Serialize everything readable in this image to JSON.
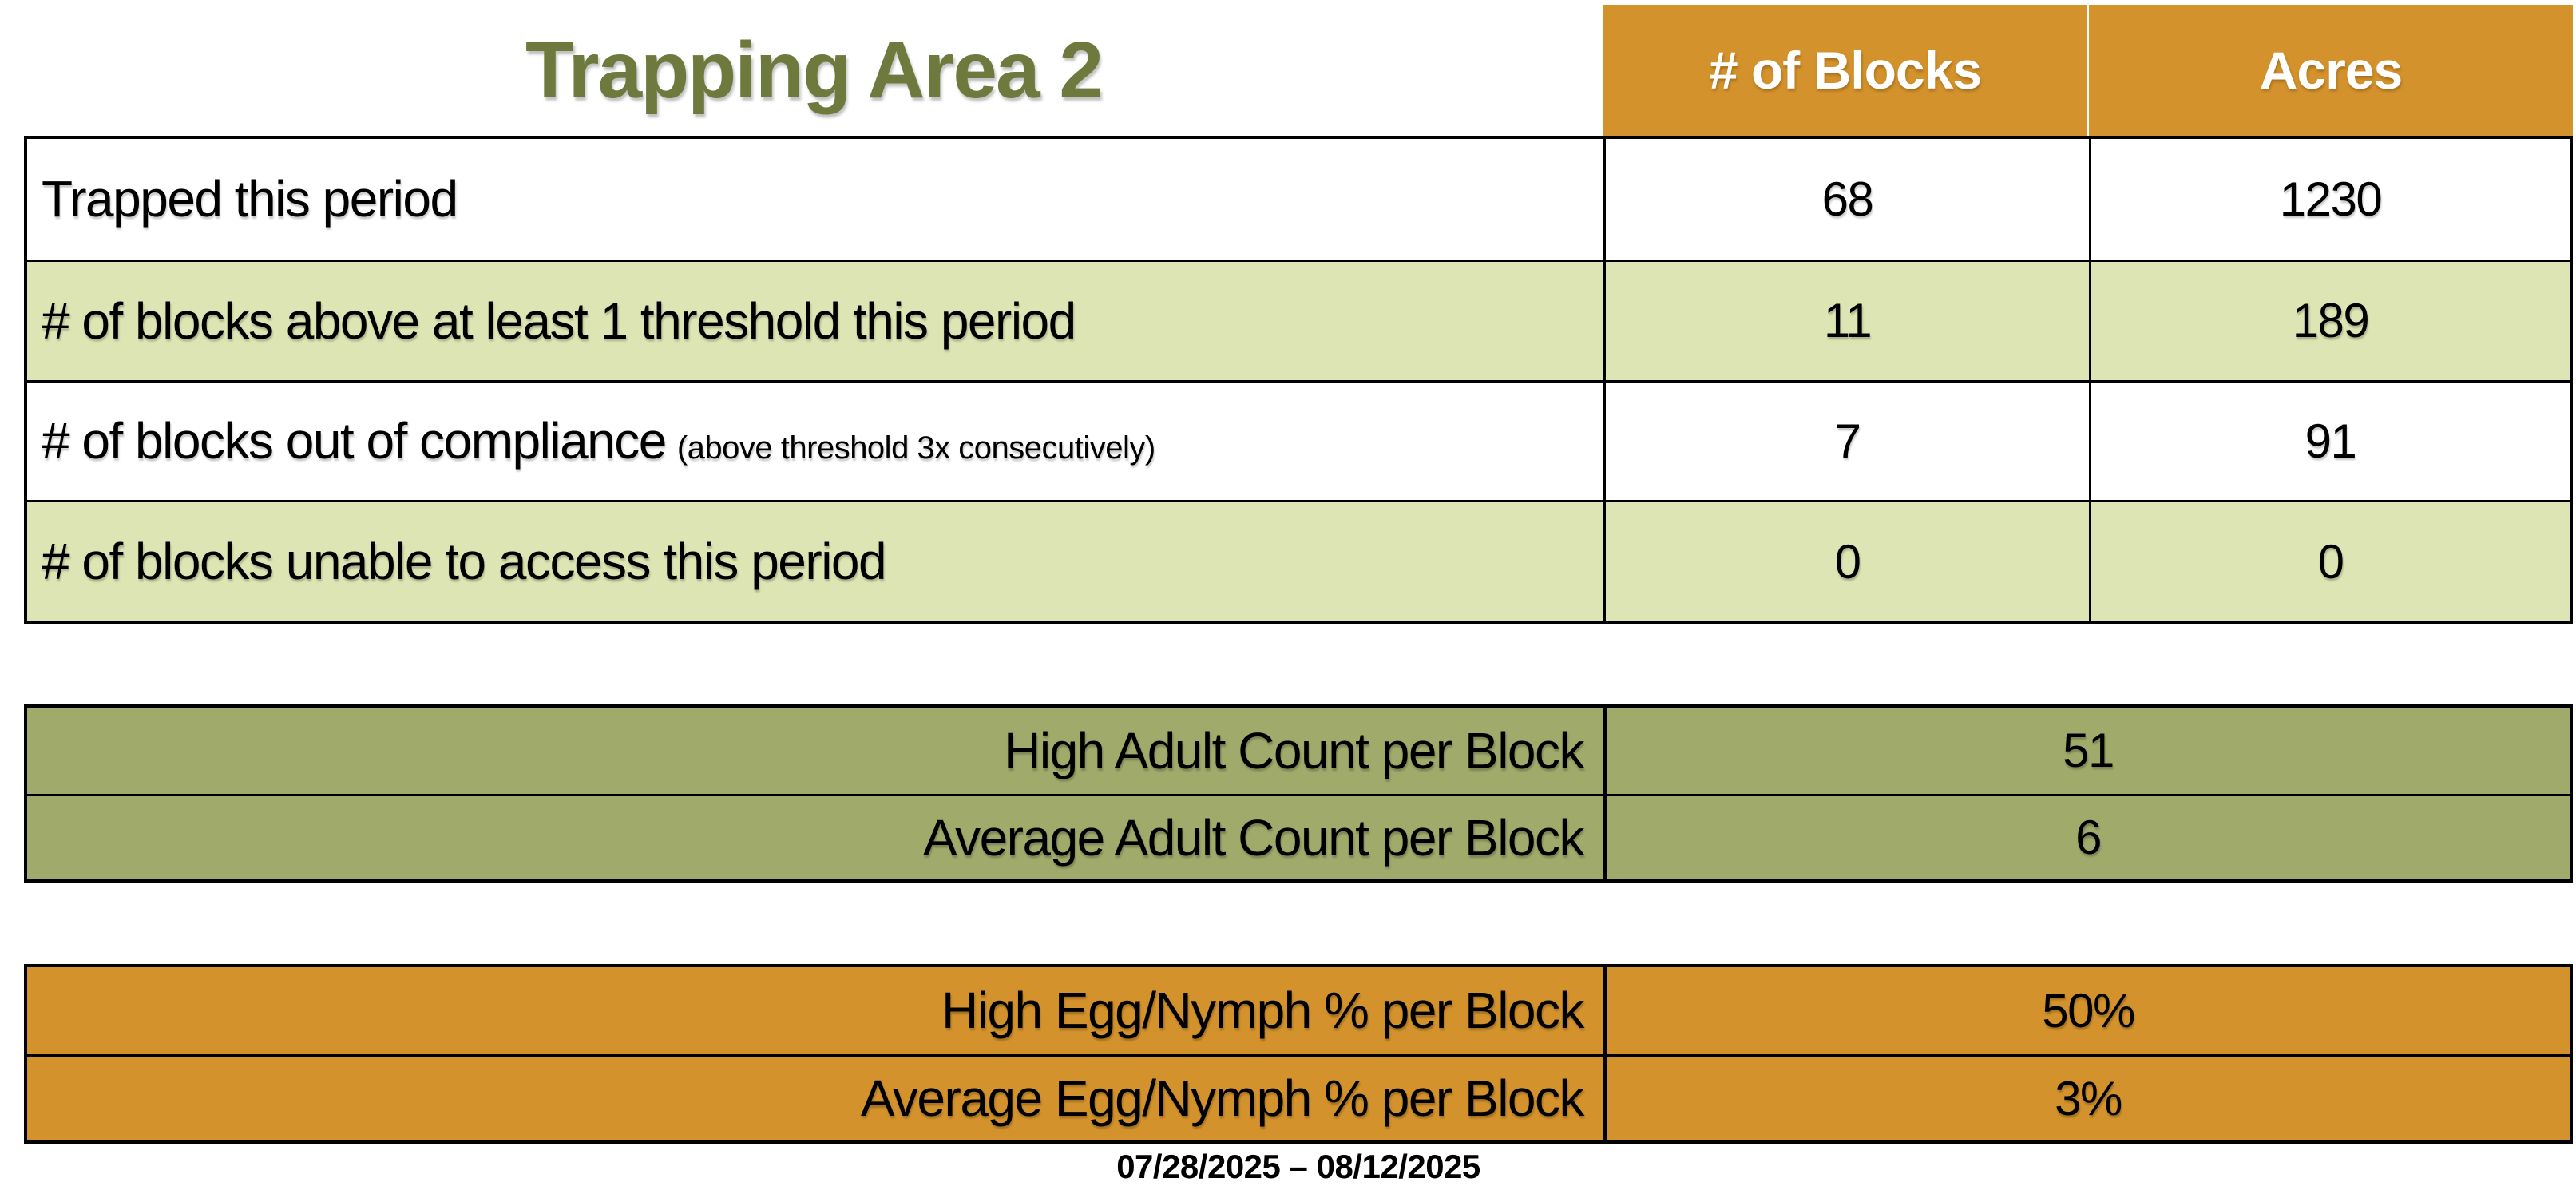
{
  "title": "Trapping Area 2",
  "colors": {
    "header_orange": "#D3922C",
    "shaded_row_green": "#DCE5B3",
    "olive_green": "#9FAA6B",
    "title_green": "#6D793D",
    "header_text": "#FFFFFF",
    "body_text": "#000000",
    "border": "#000000"
  },
  "main_table": {
    "columns": [
      "# of Blocks",
      "Acres"
    ],
    "rows": [
      {
        "label": "Trapped this period",
        "blocks": "68",
        "acres": "1230"
      },
      {
        "label": "# of blocks above at least 1 threshold this period",
        "blocks": "11",
        "acres": "189"
      },
      {
        "label": "# of blocks out of compliance",
        "note": "(above threshold 3x consecutively)",
        "blocks": "7",
        "acres": "91"
      },
      {
        "label": "# of blocks unable to access this period",
        "blocks": "0",
        "acres": "0"
      }
    ]
  },
  "adult_table": {
    "rows": [
      {
        "label": "High Adult Count per Block",
        "value": "51"
      },
      {
        "label": "Average Adult Count per Block",
        "value": "6"
      }
    ]
  },
  "egg_table": {
    "rows": [
      {
        "label": "High Egg/Nymph % per Block",
        "value": "50%"
      },
      {
        "label": "Average Egg/Nymph % per Block",
        "value": "3%"
      }
    ]
  },
  "footer": {
    "date_range": "07/28/2025 – 08/12/2025"
  }
}
